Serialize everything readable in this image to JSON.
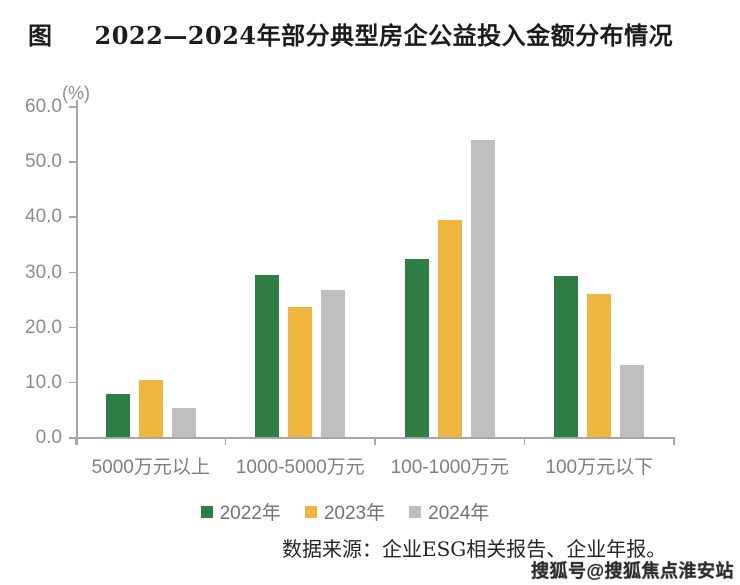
{
  "title": {
    "prefix": "图",
    "text": "2022—2024年部分典型房企公益投入金额分布情况"
  },
  "chart_data": {
    "type": "bar",
    "title": "2022—2024年部分典型房企公益投入金额分布情况",
    "unit_label": "(%)",
    "xlabel": "",
    "ylabel": "%",
    "ylim": [
      0,
      60
    ],
    "yticks": [
      0,
      10,
      20,
      30,
      40,
      50,
      60
    ],
    "ytick_labels": [
      "0.0",
      "10.0",
      "20.0",
      "30.0",
      "40.0",
      "50.0",
      "60.0"
    ],
    "grid": false,
    "legend_position": "bottom",
    "categories": [
      "5000万元以上",
      "1000-5000万元",
      "100-1000万元",
      "100万元以下"
    ],
    "series": [
      {
        "name": "2022年",
        "color": "#2E7D45",
        "values": [
          7.8,
          29.4,
          32.3,
          29.2
        ]
      },
      {
        "name": "2023年",
        "color": "#EEB63E",
        "values": [
          10.3,
          23.5,
          39.3,
          25.9
        ]
      },
      {
        "name": "2024年",
        "color": "#BFBFC1",
        "values": [
          5.2,
          26.7,
          53.8,
          13.0
        ]
      }
    ]
  },
  "footer": {
    "source": "数据来源：企业ESG相关报告、企业年报。"
  },
  "watermark": "搜狐号@搜狐焦点淮安站"
}
